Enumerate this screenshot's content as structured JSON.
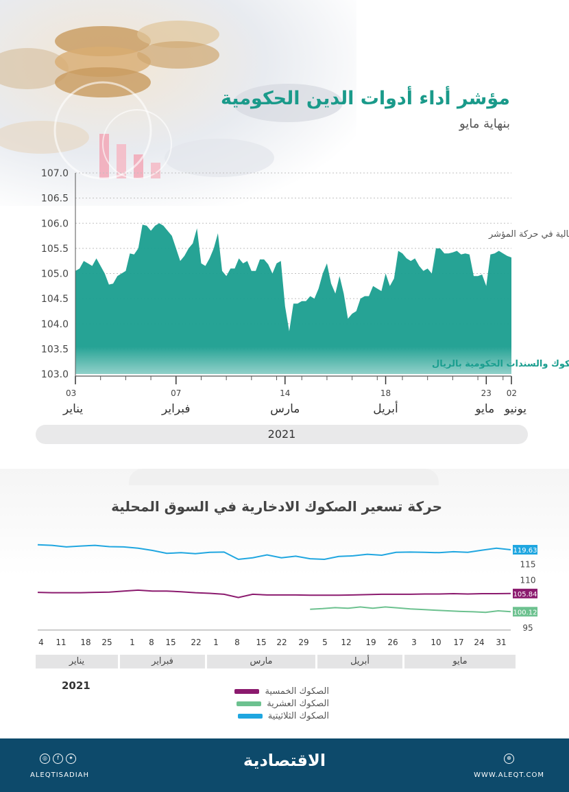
{
  "header": {
    "title": "مؤشر أداء أدوات الدين الحكومية",
    "subtitle": "بنهاية مايو"
  },
  "chart_data": [
    {
      "type": "area",
      "title": "مؤشر أداء أدوات الدين الحكومية",
      "subtitle": "بنهاية مايو",
      "series_label": "مؤشر ايبوكس تداول للصكوك والسندات الحكومية بالريال",
      "annotation": "تذبذبات شهرية عالية في حركة المؤشر",
      "ylim": [
        103.0,
        107.0
      ],
      "y_ticks": [
        "103.0",
        "103.5",
        "104.0",
        "104.5",
        "105.0",
        "105.5",
        "106.0",
        "106.5",
        "107.0"
      ],
      "x_ticks": [
        {
          "day": "03",
          "month": "يناير",
          "idx": 0
        },
        {
          "day": "07",
          "month": "فبراير",
          "idx": 24
        },
        {
          "day": "14",
          "month": "مارس",
          "idx": 50
        },
        {
          "day": "18",
          "month": "أبريل",
          "idx": 74
        },
        {
          "day": "23",
          "month": "مايو",
          "idx": 98
        },
        {
          "day": "02",
          "month": "يونيو",
          "idx": 104
        }
      ],
      "year": "2021",
      "values": [
        105.05,
        105.1,
        105.25,
        105.2,
        105.15,
        105.3,
        105.15,
        105.0,
        104.78,
        104.8,
        104.95,
        105.0,
        105.05,
        105.4,
        105.38,
        105.5,
        105.97,
        105.95,
        105.85,
        105.95,
        106.0,
        105.95,
        105.85,
        105.75,
        105.5,
        105.25,
        105.35,
        105.5,
        105.6,
        105.9,
        105.2,
        105.15,
        105.3,
        105.5,
        105.8,
        105.05,
        104.95,
        105.1,
        105.1,
        105.3,
        105.2,
        105.25,
        105.05,
        105.05,
        105.28,
        105.28,
        105.18,
        105.0,
        105.2,
        105.25,
        104.35,
        103.85,
        104.4,
        104.4,
        104.45,
        104.45,
        104.55,
        104.5,
        104.7,
        105.0,
        105.2,
        104.8,
        104.6,
        104.95,
        104.6,
        104.1,
        104.2,
        104.25,
        104.5,
        104.55,
        104.55,
        104.75,
        104.7,
        104.65,
        105.0,
        104.75,
        104.9,
        105.45,
        105.4,
        105.3,
        105.25,
        105.3,
        105.15,
        105.05,
        105.1,
        105.0,
        105.5,
        105.5,
        105.4,
        105.4,
        105.42,
        105.45,
        105.38,
        105.4,
        105.38,
        104.95,
        104.95,
        104.98,
        104.75,
        105.38,
        105.4,
        105.45,
        105.4,
        105.35,
        105.32
      ]
    },
    {
      "type": "line",
      "title": "حركة تسعير الصكوك الادخارية في السوق المحلية",
      "year": "2021",
      "y_ticks": [
        "95",
        "100",
        "110",
        "115",
        "120"
      ],
      "ylim": [
        95,
        122
      ],
      "x_ticks": [
        "4",
        "11",
        "18",
        "25",
        "1",
        "8",
        "15",
        "22",
        "1",
        "8",
        "15",
        "22",
        "29",
        "5",
        "12",
        "19",
        "26",
        "3",
        "10",
        "17",
        "24",
        "31"
      ],
      "months": [
        "يناير",
        "فبراير",
        "مارس",
        "أبريل",
        "مايو"
      ],
      "series": [
        {
          "name": "الصكوك الخمسية",
          "color": "#8b1a6e",
          "end_label": "105.84",
          "values": [
            106.2,
            106.1,
            106.1,
            106.1,
            106.2,
            106.3,
            106.6,
            106.9,
            106.6,
            106.6,
            106.4,
            106.1,
            105.9,
            105.6,
            104.6,
            105.6,
            105.4,
            105.4,
            105.4,
            105.3,
            105.3,
            105.3,
            105.4,
            105.5,
            105.6,
            105.6,
            105.6,
            105.7,
            105.7,
            105.8,
            105.7,
            105.8,
            105.8,
            105.84
          ]
        },
        {
          "name": "الصكوك العشرية",
          "color": "#6cc18f",
          "end_label": "100.12",
          "start_index": 19,
          "values": [
            100.9,
            101.1,
            101.4,
            101.2,
            101.6,
            101.2,
            101.6,
            101.3,
            101.0,
            100.8,
            100.6,
            100.4,
            100.2,
            100.1,
            99.9,
            100.4,
            100.12
          ]
        },
        {
          "name": "الصكوك الثلاثيتية",
          "color": "#1fa6e0",
          "end_label": "119.63",
          "values": [
            121.2,
            121.0,
            120.5,
            120.8,
            121.0,
            120.6,
            120.5,
            120.1,
            119.4,
            118.5,
            118.7,
            118.4,
            118.8,
            118.9,
            116.6,
            117.1,
            118.0,
            117.1,
            117.6,
            116.8,
            116.6,
            117.5,
            117.7,
            118.2,
            117.9,
            118.8,
            118.9,
            118.8,
            118.7,
            119.0,
            118.8,
            119.5,
            120.1,
            119.63
          ]
        }
      ]
    }
  ],
  "chart2": {
    "title": "حركة تسعير الصكوك الادخارية في السوق المحلية"
  },
  "footer": {
    "brand": "الاقتصادية",
    "handle": "ALEQTISADIAH",
    "website": "WWW.ALEQT.COM"
  }
}
